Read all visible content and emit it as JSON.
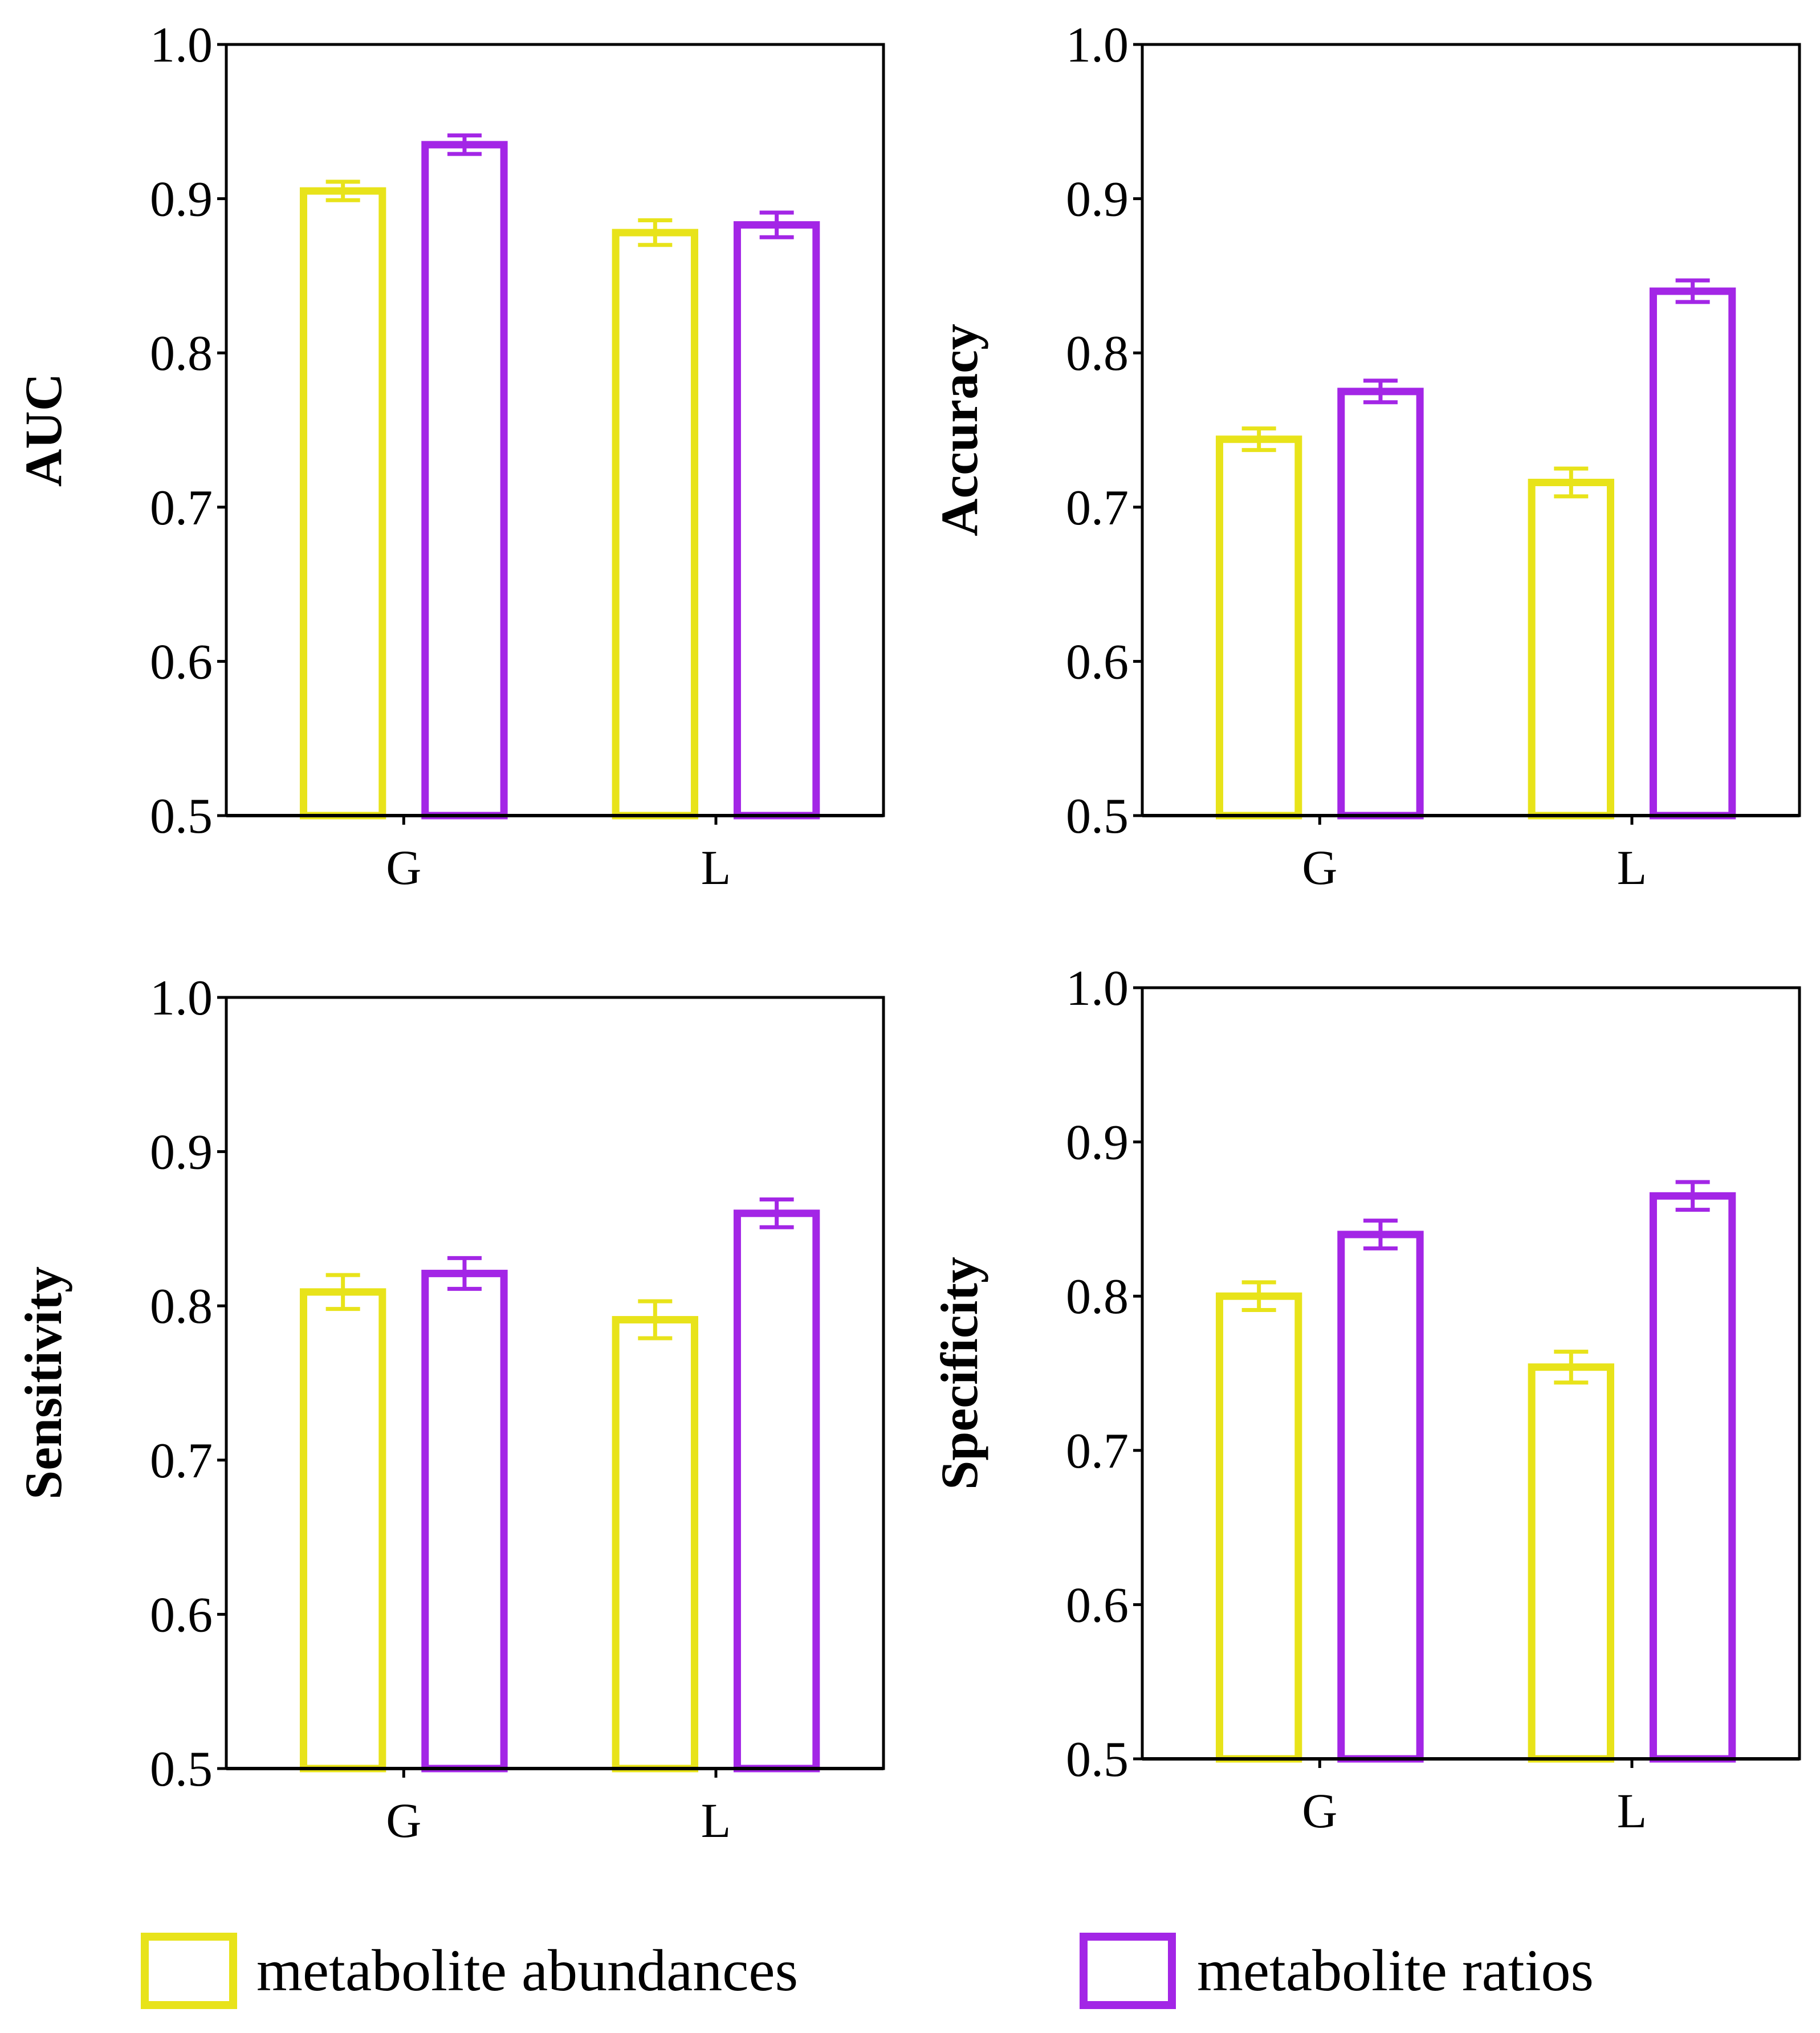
{
  "colors": {
    "abundances": "#e8e31a",
    "ratios": "#a326e6",
    "axis": "#000000"
  },
  "legend": {
    "items": [
      {
        "label": "metabolite abundances",
        "color": "#e8e31a"
      },
      {
        "label": "metabolite ratios",
        "color": "#a326e6"
      }
    ]
  },
  "chart_data": [
    {
      "type": "bar",
      "ylabel": "AUC",
      "ylim": [
        0.5,
        1.0
      ],
      "yticks": [
        "0.5",
        "0.6",
        "0.7",
        "0.8",
        "0.9",
        "1.0"
      ],
      "categories": [
        "G",
        "L"
      ],
      "series": [
        {
          "name": "metabolite abundances",
          "values": [
            0.905,
            0.878
          ],
          "errors": [
            0.006,
            0.008
          ]
        },
        {
          "name": "metabolite ratios",
          "values": [
            0.935,
            0.883
          ],
          "errors": [
            0.006,
            0.008
          ]
        }
      ]
    },
    {
      "type": "bar",
      "ylabel": "Accuracy",
      "ylim": [
        0.5,
        1.0
      ],
      "yticks": [
        "0.5",
        "0.6",
        "0.7",
        "0.8",
        "0.9",
        "1.0"
      ],
      "categories": [
        "G",
        "L"
      ],
      "series": [
        {
          "name": "metabolite abundances",
          "values": [
            0.744,
            0.716
          ],
          "errors": [
            0.007,
            0.009
          ]
        },
        {
          "name": "metabolite ratios",
          "values": [
            0.775,
            0.84
          ],
          "errors": [
            0.007,
            0.007
          ]
        }
      ]
    },
    {
      "type": "bar",
      "ylabel": "Sensitivity",
      "ylim": [
        0.5,
        1.0
      ],
      "yticks": [
        "0.5",
        "0.6",
        "0.7",
        "0.8",
        "0.9",
        "1.0"
      ],
      "categories": [
        "G",
        "L"
      ],
      "series": [
        {
          "name": "metabolite abundances",
          "values": [
            0.809,
            0.791
          ],
          "errors": [
            0.011,
            0.012
          ]
        },
        {
          "name": "metabolite ratios",
          "values": [
            0.821,
            0.86
          ],
          "errors": [
            0.01,
            0.009
          ]
        }
      ]
    },
    {
      "type": "bar",
      "ylabel": "Specificity",
      "ylim": [
        0.5,
        1.0
      ],
      "yticks": [
        "0.5",
        "0.6",
        "0.7",
        "0.8",
        "0.9",
        "1.0"
      ],
      "categories": [
        "G",
        "L"
      ],
      "series": [
        {
          "name": "metabolite abundances",
          "values": [
            0.8,
            0.754
          ],
          "errors": [
            0.009,
            0.01
          ]
        },
        {
          "name": "metabolite ratios",
          "values": [
            0.84,
            0.865
          ],
          "errors": [
            0.009,
            0.009
          ]
        }
      ]
    }
  ]
}
